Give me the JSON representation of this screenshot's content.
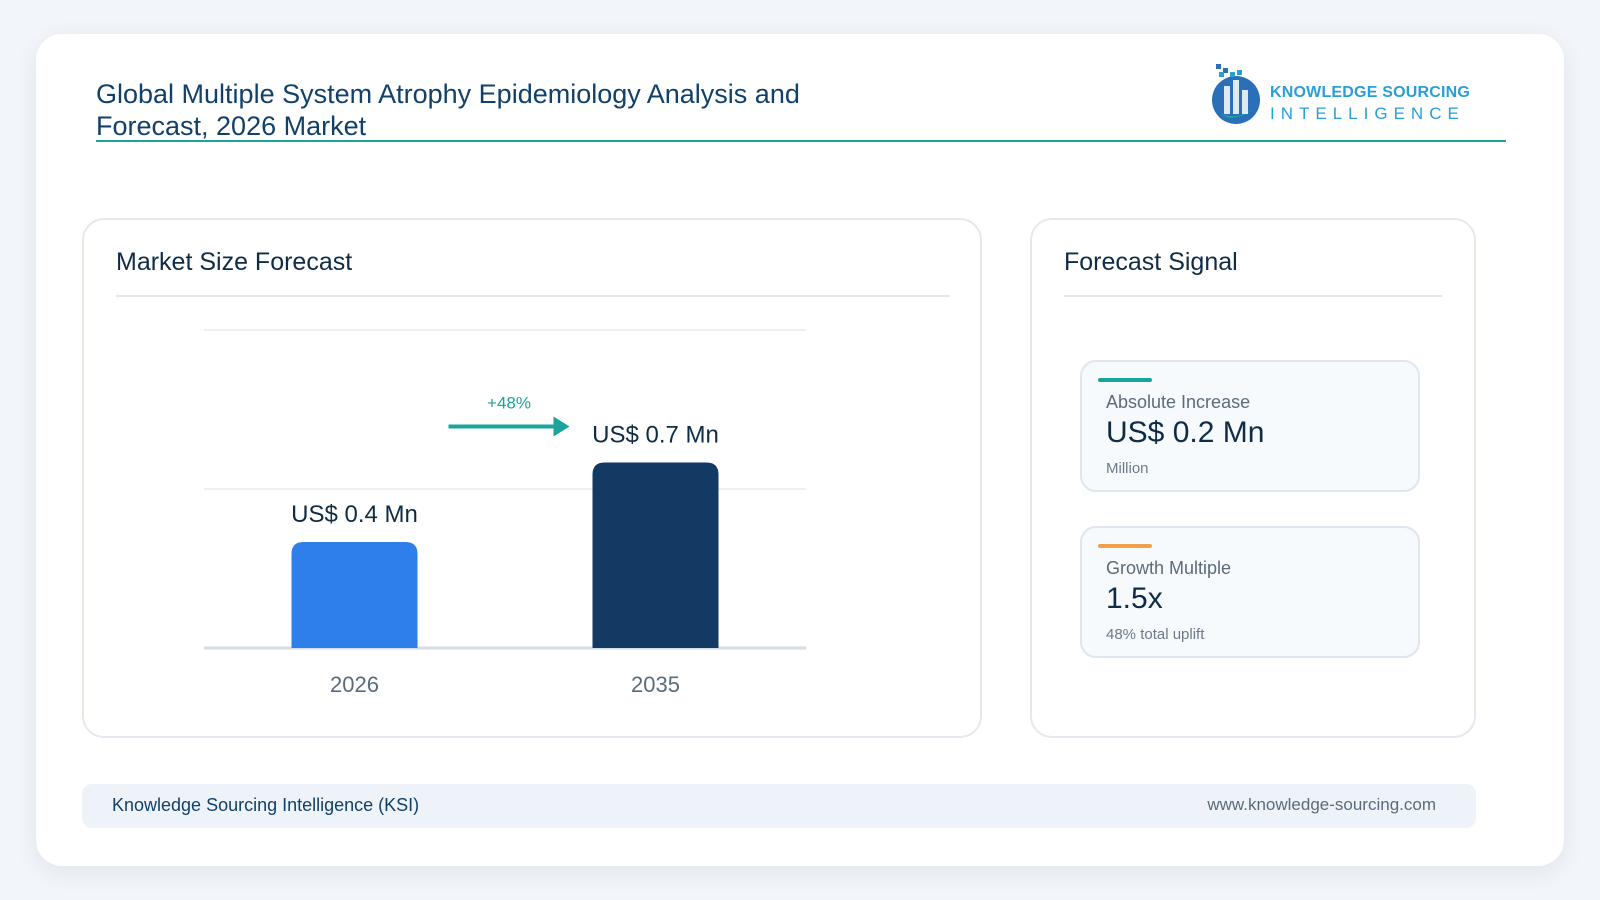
{
  "header": {
    "title_line1": "Global Multiple System Atrophy Epidemiology Analysis and",
    "title_line2": "Forecast, 2026 Market",
    "logo_line1": "KNOWLEDGE SOURCING",
    "logo_line2": "INTELLIGENCE"
  },
  "left_panel": {
    "heading": "Market Size Forecast"
  },
  "right_panel": {
    "heading": "Forecast Signal",
    "stats": [
      {
        "label": "Absolute Increase",
        "value": "US$ 0.2 Mn",
        "sub": "Million",
        "accent": "#1aa59c"
      },
      {
        "label": "Growth Multiple",
        "value": "1.5x",
        "sub": "48% total uplift",
        "accent": "#f0a04b"
      }
    ]
  },
  "chart_data": {
    "type": "bar",
    "categories": [
      "2026",
      "2035"
    ],
    "values": [
      0.4,
      0.7
    ],
    "value_labels": [
      "US$ 0.4 Mn",
      "US$ 0.7 Mn"
    ],
    "ylim": [
      0,
      1.2
    ],
    "grid": true,
    "annotation": "+48%",
    "colors": [
      "#2e7fea",
      "#123a63"
    ],
    "annotation_color": "#1aa59c"
  },
  "footer": {
    "left": "Knowledge Sourcing Intelligence (KSI)",
    "right": "www.knowledge-sourcing.com"
  }
}
